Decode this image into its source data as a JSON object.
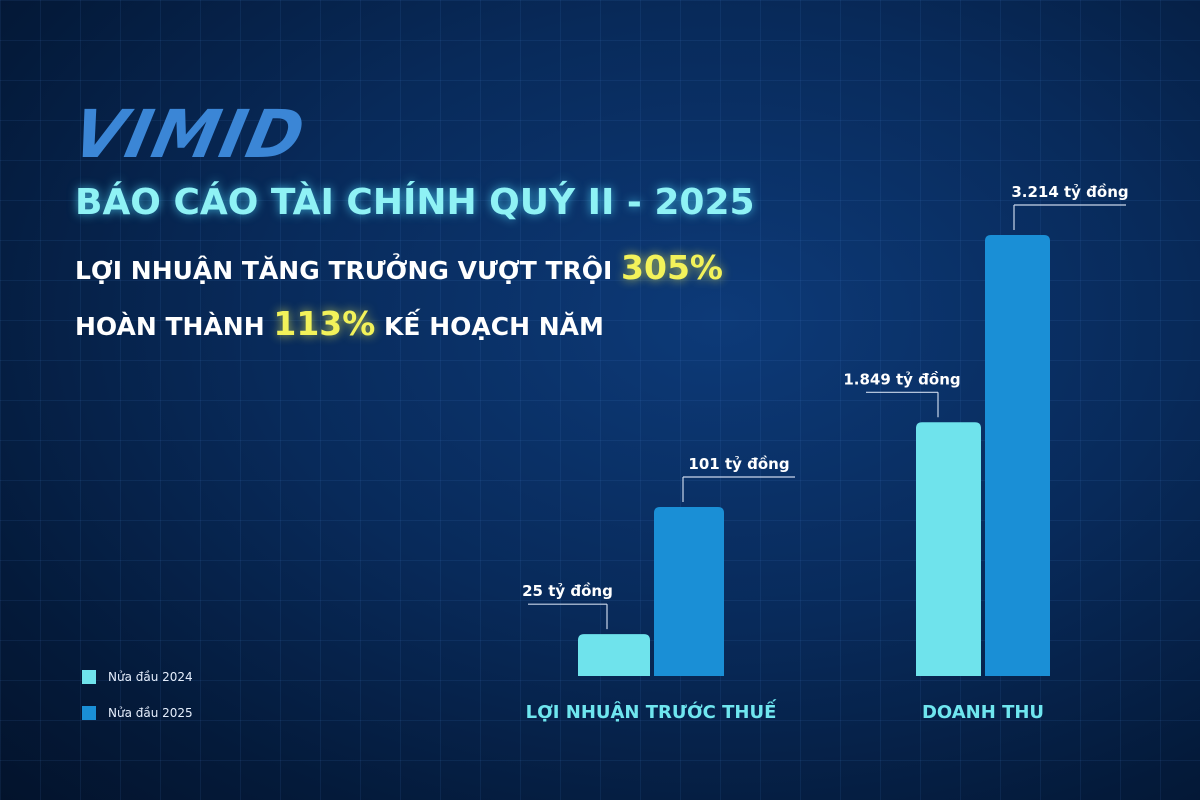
{
  "logo": "VIMID",
  "title": "BÁO CÁO TÀI CHÍNH QUÝ II - 2025",
  "line1": {
    "text": "LỢI NHUẬN TĂNG TRƯỞNG VƯỢT TRỘI",
    "highlight": "305%"
  },
  "line2": {
    "before": "HOÀN THÀNH",
    "highlight": "113%",
    "after": "KẾ HOẠCH NĂM"
  },
  "chart_data": {
    "type": "bar",
    "categories": [
      "LỢI NHUẬN TRƯỚC THUẾ",
      "DOANH THU"
    ],
    "series": [
      {
        "name": "Nửa đầu 2024",
        "values": [
          25,
          1849
        ],
        "labels": [
          "25 tỷ đồng",
          "1.849 tỷ đồng"
        ],
        "color": "#6fe3ec"
      },
      {
        "name": "Nửa đầu 2025",
        "values": [
          101,
          3214
        ],
        "labels": [
          "101 tỷ đồng",
          "3.214 tỷ đồng"
        ],
        "color": "#1a8fd6"
      }
    ],
    "unit": "tỷ đồng",
    "legend": "bottom-left",
    "grid": false
  }
}
